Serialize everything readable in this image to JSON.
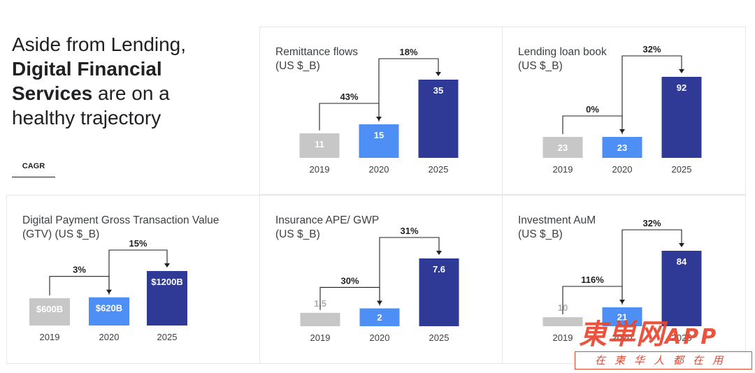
{
  "headline": {
    "line1": "Aside from Lending,",
    "bold1": "Digital Financial",
    "bold2": "Services",
    "rest2": " are on a",
    "line4": "healthy trajectory"
  },
  "legend_label": "CAGR",
  "colors": {
    "bar_2019": "#c7c7c7",
    "bar_2020": "#4d8ff5",
    "bar_2025": "#2f3a96",
    "bracket": "#202124"
  },
  "chart_data": [
    {
      "type": "bar",
      "title": [
        "Remittance flows",
        "(US $_B)"
      ],
      "categories": [
        "2019",
        "2020",
        "2025"
      ],
      "values": [
        11,
        15,
        35
      ],
      "value_labels": [
        "11",
        "15",
        "35"
      ],
      "cagr": [
        "43%",
        "18%"
      ]
    },
    {
      "type": "bar",
      "title": [
        "Lending loan book",
        "(US $_B)"
      ],
      "categories": [
        "2019",
        "2020",
        "2025"
      ],
      "values": [
        23,
        23,
        92
      ],
      "value_labels": [
        "23",
        "23",
        "92"
      ],
      "cagr": [
        "0%",
        "32%"
      ]
    },
    {
      "type": "bar",
      "title": [
        "Digital Payment Gross Transaction Value",
        "(GTV) (US $_B)"
      ],
      "categories": [
        "2019",
        "2020",
        "2025"
      ],
      "values": [
        600,
        620,
        1200
      ],
      "value_labels": [
        "$600B",
        "$620B",
        "$1200B"
      ],
      "cagr": [
        "3%",
        "15%"
      ]
    },
    {
      "type": "bar",
      "title": [
        "Insurance APE/ GWP",
        "(US $_B)"
      ],
      "categories": [
        "2019",
        "2020",
        "2025"
      ],
      "values": [
        1.5,
        2,
        7.6
      ],
      "value_labels": [
        "1.5",
        "2",
        "7.6"
      ],
      "cagr": [
        "30%",
        "31%"
      ]
    },
    {
      "type": "bar",
      "title": [
        "Investment AuM",
        "(US $_B)"
      ],
      "categories": [
        "2019",
        "2020",
        "2025"
      ],
      "values": [
        10,
        21,
        84
      ],
      "value_labels": [
        "10",
        "21",
        "84"
      ],
      "cagr": [
        "116%",
        "32%"
      ]
    }
  ],
  "watermark": {
    "main": "東単网",
    "app": "APP",
    "sub": "在柬华人都在用"
  }
}
